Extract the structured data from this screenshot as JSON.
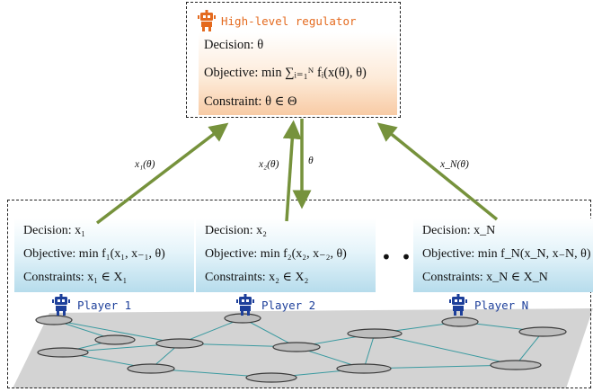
{
  "regulator": {
    "title": "High-level regulator",
    "decision": "Decision: θ",
    "objective": "Objective: min ∑ᵢ₌₁ᴺ fᵢ(x(θ), θ)",
    "constraint": "Constraint: θ ∈ Θ"
  },
  "players": [
    {
      "name": "Player 1",
      "decision": "Decision: x₁",
      "objective": "Objective: min f₁(x₁, x₋₁, θ)",
      "constraint": "Constraints: x₁ ∈ X₁"
    },
    {
      "name": "Player 2",
      "decision": "Decision: x₂",
      "objective": "Objective: min f₂(x₂, x₋₂, θ)",
      "constraint": "Constraints: x₂ ∈ X₂"
    },
    {
      "name": "Player N",
      "decision": "Decision: x_N",
      "objective": "Objective: min f_N(x_N, x₋N, θ)",
      "constraint": "Constraints: x_N ∈ X_N"
    }
  ],
  "ellipsis": "• • •",
  "arrow_labels": {
    "x1": "x₁(θ)",
    "x2": "x₂(θ)",
    "theta": "θ",
    "xN": "x_N(θ)"
  },
  "colors": {
    "arrow": "#76923c",
    "regulator_accent": "#e46a1e",
    "player_accent": "#1d3f9a",
    "network_plane": "#d4d4d4",
    "network_edge": "#3a9aa0"
  }
}
